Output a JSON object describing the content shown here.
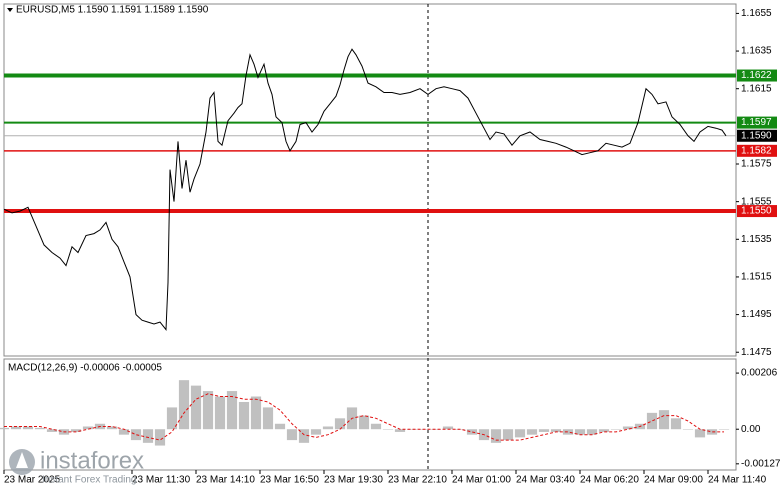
{
  "chart_data": [
    {
      "type": "line",
      "title": "EURUSD,M5  1.1590 1.1591 1.1589 1.1590",
      "color": "#000000",
      "x": [
        0,
        4,
        8,
        12,
        16,
        20,
        24,
        28,
        31,
        34,
        37,
        41,
        45,
        48,
        51,
        54,
        57,
        60,
        63,
        66,
        69,
        72,
        75,
        78,
        81,
        82,
        83,
        85,
        87,
        89,
        91,
        93,
        95,
        98,
        101,
        103,
        105,
        107,
        109,
        112,
        115,
        117,
        119,
        121,
        123,
        125,
        127,
        130,
        132,
        134,
        136,
        139,
        141,
        143,
        146,
        148,
        151,
        154,
        157,
        160,
        163,
        166,
        168,
        170,
        172,
        174,
        176,
        179,
        182,
        186,
        190,
        194,
        198,
        203,
        208,
        212,
        216,
        220,
        224,
        228,
        232,
        236,
        240,
        243,
        246,
        250,
        254,
        258,
        263,
        268,
        272,
        276,
        281,
        285,
        289,
        293,
        297,
        301,
        305,
        309,
        313,
        317,
        321,
        324,
        327,
        331,
        334,
        338,
        342,
        345,
        348,
        352,
        356,
        359,
        361
      ],
      "values": [
        1.1551,
        1.1549,
        1.155,
        1.1552,
        1.1542,
        1.1532,
        1.1528,
        1.1525,
        1.1521,
        1.1531,
        1.1528,
        1.1537,
        1.1538,
        1.154,
        1.1544,
        1.1535,
        1.1531,
        1.1523,
        1.1515,
        1.1495,
        1.1492,
        1.1491,
        1.149,
        1.1491,
        1.1487,
        1.1512,
        1.1572,
        1.1555,
        1.1587,
        1.1562,
        1.1577,
        1.156,
        1.1567,
        1.1575,
        1.1592,
        1.161,
        1.1613,
        1.1587,
        1.1585,
        1.1598,
        1.1602,
        1.1605,
        1.1607,
        1.1622,
        1.1633,
        1.1628,
        1.1621,
        1.1628,
        1.1618,
        1.1612,
        1.16,
        1.1597,
        1.1587,
        1.1582,
        1.1587,
        1.1596,
        1.1597,
        1.1592,
        1.1596,
        1.1603,
        1.1607,
        1.1611,
        1.1617,
        1.1625,
        1.1632,
        1.1636,
        1.1633,
        1.1627,
        1.1618,
        1.1616,
        1.1613,
        1.1613,
        1.1612,
        1.1613,
        1.1615,
        1.1612,
        1.1615,
        1.1616,
        1.1615,
        1.1614,
        1.161,
        1.1602,
        1.1594,
        1.1588,
        1.1592,
        1.1591,
        1.1585,
        1.159,
        1.1592,
        1.1588,
        1.1587,
        1.1586,
        1.1584,
        1.1582,
        1.158,
        1.1581,
        1.1582,
        1.1586,
        1.1585,
        1.1584,
        1.1586,
        1.1597,
        1.1615,
        1.1612,
        1.1607,
        1.1608,
        1.16,
        1.1596,
        1.159,
        1.1587,
        1.1592,
        1.1595,
        1.1594,
        1.1593,
        1.159
      ],
      "xlim": [
        0,
        366
      ],
      "xticks": [
        {
          "value": 0,
          "label": "23 Mar 2025"
        },
        {
          "value": 64,
          "label": "23 Mar 11:30"
        },
        {
          "value": 96,
          "label": "23 Mar 14:10"
        },
        {
          "value": 128,
          "label": "23 Mar 16:50"
        },
        {
          "value": 160,
          "label": "23 Mar 19:30"
        },
        {
          "value": 192,
          "label": "23 Mar 22:10"
        },
        {
          "value": 224,
          "label": "24 Mar 01:00"
        },
        {
          "value": 256,
          "label": "24 Mar 03:40"
        },
        {
          "value": 288,
          "label": "24 Mar 06:20"
        },
        {
          "value": 320,
          "label": "24 Mar 09:00"
        },
        {
          "value": 352,
          "label": "24 Mar 11:40"
        }
      ],
      "ylim": [
        1.1473,
        1.166
      ],
      "yticks": [
        1.1655,
        1.1635,
        1.1615,
        1.1575,
        1.1555,
        1.1535,
        1.1515,
        1.1495,
        1.1475
      ],
      "separator_x": 212,
      "levels": [
        {
          "value": 1.1622,
          "label": "1.1622",
          "color": "#138a13",
          "width": 4
        },
        {
          "value": 1.1597,
          "label": "1.1597",
          "color": "#138a13",
          "width": 2
        },
        {
          "value": 1.1582,
          "label": "1.1582",
          "color": "#e01010",
          "width": 1.5
        },
        {
          "value": 1.155,
          "label": "1.1550",
          "color": "#e01010",
          "width": 4
        }
      ],
      "last": {
        "value": 1.159,
        "label": "1.1590",
        "color": "#000000"
      }
    },
    {
      "type": "bar",
      "title": "MACD(12,26,9) -0.00006 -0.00005",
      "color": "#c0c0c0",
      "signal_color": "#e01010",
      "x": [
        0,
        6,
        12,
        18,
        24,
        30,
        36,
        42,
        48,
        54,
        60,
        66,
        72,
        78,
        84,
        90,
        96,
        102,
        108,
        114,
        120,
        126,
        132,
        138,
        144,
        150,
        156,
        162,
        168,
        174,
        180,
        186,
        192,
        198,
        204,
        210,
        216,
        222,
        228,
        234,
        240,
        246,
        252,
        258,
        264,
        270,
        276,
        282,
        288,
        294,
        300,
        306,
        312,
        318,
        324,
        330,
        336,
        342,
        348,
        354,
        360
      ],
      "values": [
        5e-05,
        0.0001,
        0.0001,
        5e-05,
        -0.0001,
        -0.0002,
        -0.0001,
        0.0001,
        0.0002,
        0.0001,
        -0.0002,
        -0.0004,
        -0.0005,
        -0.0006,
        0.0008,
        0.0018,
        0.0016,
        0.0014,
        0.0012,
        0.0014,
        0.001,
        0.0012,
        0.0008,
        0.0002,
        -0.0004,
        -0.0005,
        -0.0002,
        0.0001,
        0.0004,
        0.0008,
        0.0005,
        0.0002,
        0,
        -0.0001,
        0,
        0,
        0,
        0.0001,
        0,
        -0.0002,
        -0.0004,
        -0.0005,
        -0.0004,
        -0.0003,
        -0.0002,
        -0.0001,
        -0.0001,
        -0.0002,
        -0.0002,
        -0.0002,
        -0.0001,
        0,
        0.0001,
        0.0002,
        0.0006,
        0.0007,
        0.0004,
        0,
        -0.0003,
        -0.0002,
        0
      ],
      "signal_values": [
        0.0001,
        0.0001,
        0.0001,
        0.0001,
        0,
        -0.0001,
        -0.0001,
        0,
        0.0001,
        0.0001,
        0,
        -0.0002,
        -0.0003,
        -0.0004,
        -0.0001,
        0.0006,
        0.0011,
        0.0013,
        0.0012,
        0.0012,
        0.0011,
        0.0011,
        0.001,
        0.0007,
        0.0002,
        -0.0002,
        -0.0003,
        -0.0002,
        0,
        0.0004,
        0.0005,
        0.0004,
        0.0002,
        0,
        0,
        0,
        0,
        0,
        0,
        -0.0001,
        -0.0002,
        -0.0004,
        -0.0004,
        -0.0004,
        -0.0003,
        -0.0002,
        -0.0001,
        -0.0001,
        -0.0002,
        -0.0002,
        -0.0001,
        -0.0001,
        0,
        0.0001,
        0.0003,
        0.0005,
        0.0005,
        0.0003,
        0,
        -0.0001,
        -0.0001
      ],
      "xlim": [
        0,
        366
      ],
      "ylim": [
        -0.00135,
        0.00232
      ],
      "yticks": [
        0.00206,
        {
          "value": 0,
          "label": "0.00"
        },
        -0.00127
      ]
    }
  ],
  "watermark": {
    "title": "instaforex",
    "subtitle": "Instant Forex Trading"
  }
}
